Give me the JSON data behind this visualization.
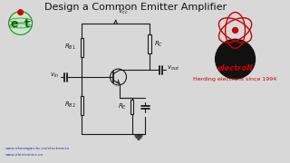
{
  "title": "Design a Common Emitter Amplifier",
  "title_fontsize": 8,
  "bg_color": "#d8d8d8",
  "circuit_color": "#1a1a1a",
  "text_color": "#1a1a1a",
  "red_color": "#cc0000",
  "url_text1": "www.okanagan.bc.ca/electronics",
  "url_text2": "www.electronics.ca",
  "right_text1": "electroN",
  "right_text2": "Herding electrons since 1994"
}
